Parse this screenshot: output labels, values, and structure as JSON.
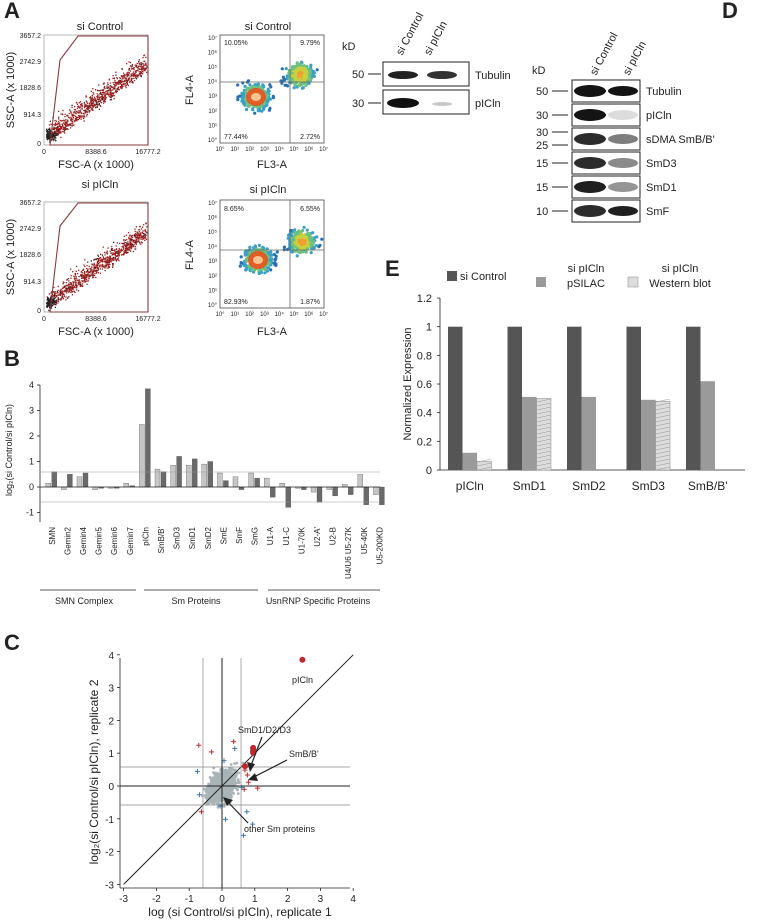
{
  "panels": {
    "A": "A",
    "B": "B",
    "C": "C",
    "D": "D",
    "E": "E"
  },
  "flow": {
    "control_title": "si Control",
    "pICln_title": "si pICln",
    "scatter_xlabel": "FSC-A (x 1000)",
    "scatter_ylabel": "SSC-A (x 1000)",
    "scatter_yticks": [
      "3657.2",
      "2742.9",
      "1828.6",
      "914.3",
      "0"
    ],
    "scatter_xticks": [
      "0",
      "8388.6",
      "16777.2"
    ],
    "density_xlabel": "FL3-A",
    "density_ylabel": "FL4-A",
    "density_ticks": [
      "10°",
      "10¹",
      "10²",
      "10³",
      "10⁴",
      "10⁵",
      "10⁶",
      "10⁷"
    ],
    "control_quadrants": {
      "ul": "10.05%",
      "ur": "9.79%",
      "ll": "77.44%",
      "lr": "2.72%"
    },
    "pICln_quadrants": {
      "ul": "8.65%",
      "ur": "6.55%",
      "ll": "82.93%",
      "lr": "1.87%"
    }
  },
  "blotA": {
    "kd": "kD",
    "lanes": [
      "si Control",
      "si pICln"
    ],
    "rows": [
      {
        "marker": "50",
        "label": "Tubulin"
      },
      {
        "marker": "30",
        "label": "pICln"
      }
    ]
  },
  "blotD": {
    "kd": "kD",
    "lanes": [
      "si Control",
      "si pICln"
    ],
    "rows": [
      {
        "marker": "50",
        "label": "Tubulin"
      },
      {
        "marker": "30",
        "label": "pICln"
      },
      {
        "marker": "30",
        "marker2": "25",
        "label": "sDMA SmB/B'"
      },
      {
        "marker": "15",
        "label": "SmD3"
      },
      {
        "marker": "15",
        "label": "SmD1"
      },
      {
        "marker": "10",
        "label": "SmF"
      }
    ]
  },
  "chartB": {
    "ylabel": "log₂(si Control/si pICln)",
    "yticks": [
      "4",
      "3",
      "2",
      "1",
      "0",
      "-1"
    ],
    "groups": [
      "SMN Complex",
      "Sm Proteins",
      "UsnRNP Specific Proteins"
    ],
    "highlight_color": "#b0302a"
  },
  "chartC": {
    "ylabel": "log₂(si Control/si pICln), replicate 2",
    "xlabel": "log (si Control/si pICln), replicate 1",
    "ticks": [
      "-3",
      "-2",
      "-1",
      "0",
      "1",
      "2",
      "3",
      "4"
    ],
    "annotations": {
      "pICln": "pICln",
      "smd": "SmD1/D2/D3",
      "smb": "SmB/B'",
      "other": "other Sm proteins"
    },
    "point_colors": {
      "grey": "#a9b4b8",
      "red": "#c0282a",
      "blue": "#3a78b0"
    }
  },
  "chart_data": [
    {
      "type": "bar",
      "panel": "B",
      "ylabel": "log₂(si Control/si pICln)",
      "ylim": [
        -1.5,
        4.3
      ],
      "categories": [
        "SMN",
        "Gemin2",
        "Gemin4",
        "Gemin5",
        "Gemin6",
        "Gemin7",
        "pICln",
        "SmB/B'",
        "SmD3",
        "SmD1",
        "SmD2",
        "SmE",
        "SmF",
        "SmG",
        "U1-A",
        "U1-C",
        "U1-70K",
        "U2-A'",
        "U2-B",
        "U4/U6 U5-27K",
        "U5-40K",
        "U5-200KD"
      ],
      "series": [
        {
          "values": [
            0.15,
            -0.1,
            0.4,
            -0.1,
            -0.05,
            0.15,
            2.45,
            0.7,
            0.85,
            0.85,
            0.9,
            0.55,
            0.4,
            0.55,
            0.35,
            0.15,
            -0.05,
            -0.2,
            -0.1,
            0.1,
            0.5,
            -0.3
          ]
        },
        {
          "values": [
            0.6,
            0.5,
            0.55,
            -0.05,
            -0.05,
            0.05,
            3.85,
            0.6,
            1.2,
            1.1,
            1.0,
            0.25,
            -0.1,
            0.35,
            -0.4,
            -0.8,
            -0.1,
            -0.6,
            -0.35,
            -0.3,
            -0.7,
            -0.7
          ]
        }
      ],
      "hlines": [
        0.58,
        -0.58
      ],
      "grid": false
    },
    {
      "type": "bar",
      "panel": "E",
      "ylabel": "Normalized Expression",
      "ylim": [
        0,
        1.2
      ],
      "yticks": [
        "1.2",
        "1",
        "0.8",
        "0.6",
        "0.4",
        "0.2",
        "0"
      ],
      "categories": [
        "pICln",
        "SmD1",
        "SmD2",
        "SmD3",
        "SmB/B'"
      ],
      "series": [
        {
          "name": "si Control",
          "values": [
            1,
            1,
            1,
            1,
            1
          ],
          "color": "#555555"
        },
        {
          "name": "si pICln pSILAC",
          "values": [
            0.12,
            0.51,
            0.51,
            0.49,
            0.62
          ],
          "color": "#9a9a9a"
        },
        {
          "name": "si pICln Western blot",
          "values": [
            0.06,
            0.5,
            null,
            0.48,
            null
          ],
          "color": "#dcdcdc"
        }
      ],
      "legend": "top",
      "grid": false
    },
    {
      "type": "scatter",
      "panel": "C",
      "xlabel": "log (si Control/si pICln), replicate 1",
      "ylabel": "log₂(si Control/si pICln), replicate 2",
      "xlim": [
        -3,
        4
      ],
      "ylim": [
        -3,
        4
      ],
      "highlighted_points": [
        {
          "label": "pICln",
          "x": 2.45,
          "y": 3.85
        },
        {
          "label": "SmD1/D2/D3",
          "x": 0.95,
          "y": 1.1
        },
        {
          "label": "SmB/B'",
          "x": 0.7,
          "y": 0.6
        }
      ],
      "hlines": [
        0,
        0.58,
        -0.58
      ],
      "vlines": [
        0,
        0.58,
        -0.58
      ],
      "diagonal": true
    }
  ]
}
